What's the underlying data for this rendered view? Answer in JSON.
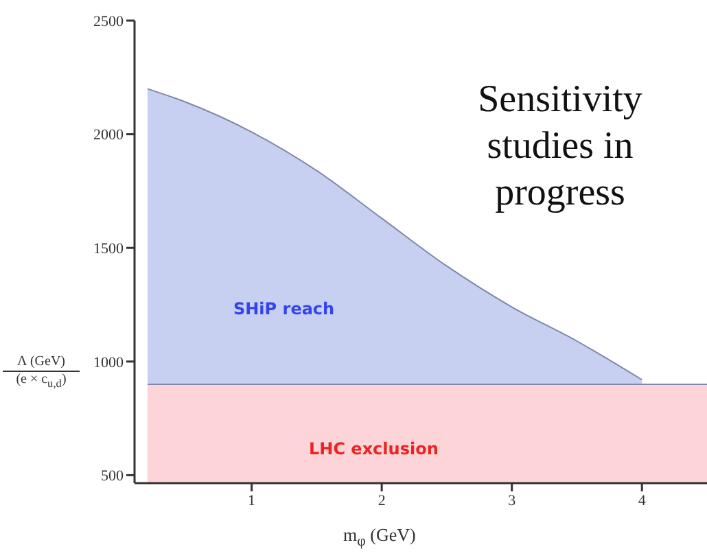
{
  "chart_data": {
    "type": "area",
    "xlabel": "m$_{φ}$ (GeV)",
    "ylabel": "Λ (GeV) (e × c$_{u,d}$)",
    "annotations": [
      "Sensitivity studies in progress"
    ],
    "x": [
      0.2,
      0.5,
      1,
      1.5,
      2,
      2.5,
      3,
      3.5,
      4,
      4.5
    ],
    "series": [
      {
        "name": "SHiP reach",
        "color": "#c8d0f2",
        "values": [
          2200,
          2140,
          2010,
          1840,
          1630,
          1420,
          1240,
          1090,
          920,
          null
        ]
      },
      {
        "name": "LHC exclusion",
        "color": "#fdd5d8",
        "values": [
          900,
          900,
          900,
          900,
          900,
          900,
          900,
          900,
          900,
          900
        ]
      }
    ],
    "xlim": [
      0.1,
      4.5
    ],
    "xticks": [
      1,
      2,
      3,
      4
    ],
    "ylim": [
      465,
      2500
    ],
    "yticks": [
      500,
      1000,
      1500,
      2000,
      2500
    ],
    "marker": "none"
  }
}
